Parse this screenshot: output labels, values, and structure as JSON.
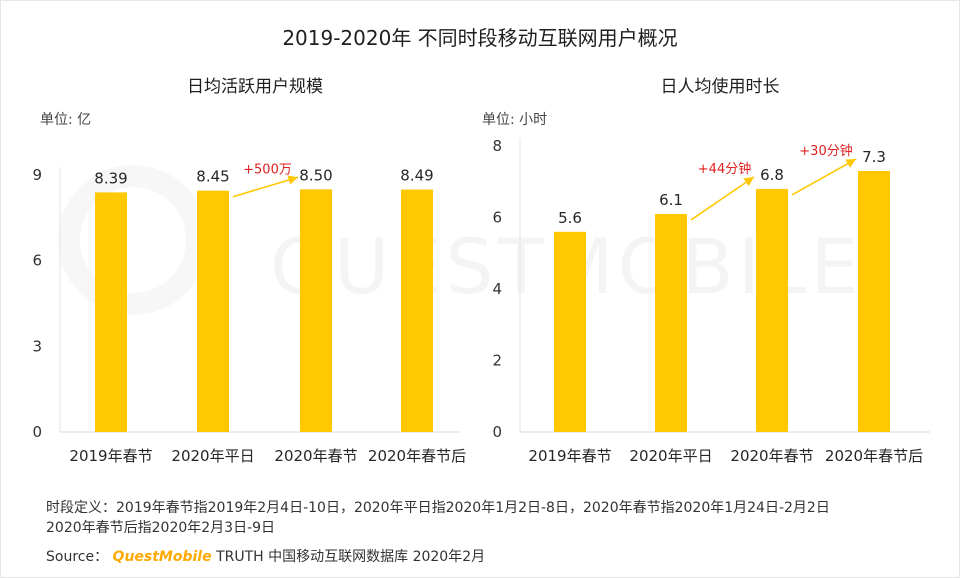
{
  "page": {
    "title": "2019-2020年 不同时段移动互联网用户概况",
    "watermark": "QUESTMOBILE",
    "footnote_line1": "时段定义：2019年春节指2019年2月4日-10日，2020年平日指2020年1月2日-8日，2020年春节指2020年1月24日-2月2日",
    "footnote_line2": "2020年春节后指2020年2月3日-9日",
    "source_label": "Source：",
    "source_brand": "QuestMobile",
    "source_text": "TRUTH 中国移动互联网数据库 2020年2月"
  },
  "colors": {
    "bar": "#ffc800",
    "arrow": "#ffc800",
    "delta_text": "#e02020"
  },
  "chart_data": [
    {
      "type": "bar",
      "title": "日均活跃用户规模",
      "unit_label": "单位: 亿",
      "categories": [
        "2019年春节",
        "2020年平日",
        "2020年春节",
        "2020年春节后"
      ],
      "values": [
        8.39,
        8.45,
        8.5,
        8.49
      ],
      "value_labels": [
        "8.39",
        "8.45",
        "8.50",
        "8.49"
      ],
      "ylim": [
        0,
        9
      ],
      "yticks": [
        0,
        3,
        6,
        9
      ],
      "annotations": [
        {
          "text": "+500万",
          "from_index": 1,
          "to_index": 2
        }
      ]
    },
    {
      "type": "bar",
      "title": "日人均使用时长",
      "unit_label": "单位: 小时",
      "categories": [
        "2019年春节",
        "2020年平日",
        "2020年春节",
        "2020年春节后"
      ],
      "values": [
        5.6,
        6.1,
        6.8,
        7.3
      ],
      "value_labels": [
        "5.6",
        "6.1",
        "6.8",
        "7.3"
      ],
      "ylim": [
        0,
        8
      ],
      "yticks": [
        0,
        2,
        4,
        6,
        8
      ],
      "annotations": [
        {
          "text": "+44分钟",
          "from_index": 1,
          "to_index": 2
        },
        {
          "text": "+30分钟",
          "from_index": 2,
          "to_index": 3
        }
      ]
    }
  ]
}
